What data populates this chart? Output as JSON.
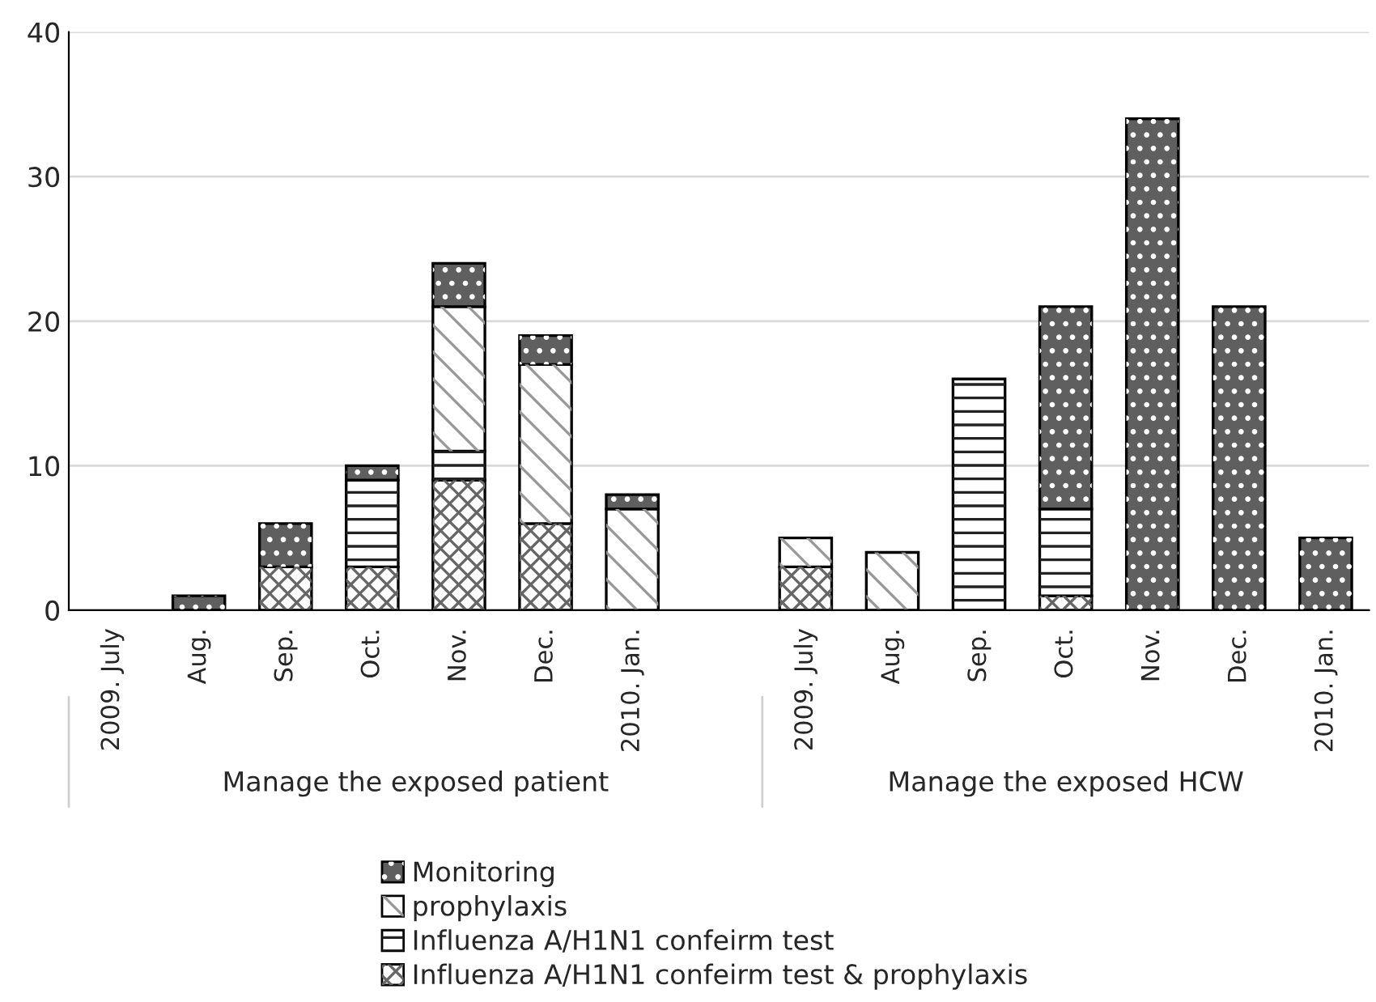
{
  "chart_data": {
    "type": "bar",
    "stacked": true,
    "categories": [
      "2009. July",
      "Aug.",
      "Sep.",
      "Oct.",
      "Nov.",
      "Dec.",
      "2010. Jan.",
      null,
      "2009. July",
      "Aug.",
      "Sep.",
      "Oct.",
      "Nov.",
      "Dec.",
      "2010. Jan."
    ],
    "series": [
      {
        "name": "Influenza A/H1N1 confeirm test & prophylaxis",
        "color": "#ffffff",
        "values": [
          0,
          0,
          3,
          3,
          9,
          6,
          0,
          null,
          3,
          0,
          0,
          1,
          0,
          0,
          0
        ]
      },
      {
        "name": "Influenza A/H1N1 confeirm test",
        "color": "#ffffff",
        "values": [
          0,
          0,
          0,
          6,
          2,
          0,
          0,
          null,
          0,
          0,
          16,
          6,
          0,
          0,
          0
        ]
      },
      {
        "name": "prophylaxis",
        "color": "#ffffff",
        "values": [
          0,
          0,
          0,
          0,
          10,
          11,
          7,
          null,
          2,
          4,
          0,
          0,
          0,
          0,
          0
        ]
      },
      {
        "name": "Monitoring",
        "color": "#5f5f5f",
        "values": [
          0,
          1,
          3,
          1,
          3,
          2,
          1,
          null,
          0,
          0,
          0,
          14,
          34,
          21,
          5
        ]
      }
    ],
    "annotations": [
      "Manage the exposed patient",
      "Manage the exposed HCW"
    ],
    "ylim": [
      0,
      40
    ],
    "yticks": [
      0,
      10,
      20,
      30,
      40
    ],
    "grid": "y",
    "legend": "bottom"
  }
}
